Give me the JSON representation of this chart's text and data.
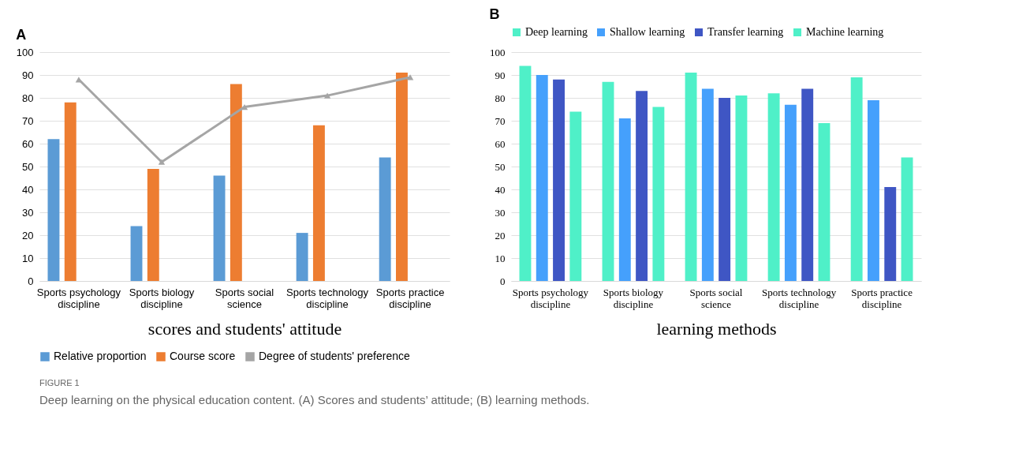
{
  "chart_data": [
    {
      "type": "bar",
      "title": "A",
      "xlabel": "scores and students' attitude",
      "categories": [
        "Sports psychology discipline",
        "Sports biology discipline",
        "Sports social science",
        "Sports technology discipline",
        "Sports practice discipline"
      ],
      "series": [
        {
          "name": "Relative proportion",
          "color": "#5b9bd5",
          "values": [
            62,
            24,
            46,
            21,
            54
          ]
        },
        {
          "name": "Course score",
          "color": "#ed7d31",
          "values": [
            78,
            49,
            86,
            68,
            91
          ]
        },
        {
          "name": "Degree of students' preference",
          "color": "#a5a5a5",
          "type": "line",
          "values": [
            88,
            52,
            76,
            81,
            89
          ]
        }
      ],
      "ylim": [
        0,
        100
      ],
      "yticks": [
        0,
        10,
        20,
        30,
        40,
        50,
        60,
        70,
        80,
        90,
        100
      ],
      "grid": "y",
      "legend": "bottom",
      "marker": "triangle",
      "annotations": [
        "FIGURE 1",
        "Deep learning on the physical education content. (A) Scores and students’ attitude; (B) learning methods."
      ]
    },
    {
      "type": "bar",
      "title": "B",
      "xlabel": "learning methods",
      "categories": [
        "Sports psychology discipline",
        "Sports biology discipline",
        "Sports social science",
        "Sports technology discipline",
        "Sports practice discipline"
      ],
      "series": [
        {
          "name": "Deep learning",
          "color": "#4ff0c8",
          "values": [
            94,
            87,
            91,
            82,
            89
          ]
        },
        {
          "name": "Shallow learning",
          "color": "#45a0fc",
          "values": [
            90,
            71,
            84,
            77,
            79
          ]
        },
        {
          "name": "Transfer learning",
          "color": "#3f56c4",
          "values": [
            88,
            83,
            80,
            84,
            41
          ]
        },
        {
          "name": "Machine learning",
          "color": "#4ff0c8",
          "values": [
            74,
            76,
            81,
            69,
            54
          ]
        }
      ],
      "ylim": [
        0,
        100
      ],
      "yticks": [
        0,
        10,
        20,
        30,
        40,
        50,
        60,
        70,
        80,
        90,
        100
      ],
      "grid": "y",
      "legend": "top"
    }
  ]
}
